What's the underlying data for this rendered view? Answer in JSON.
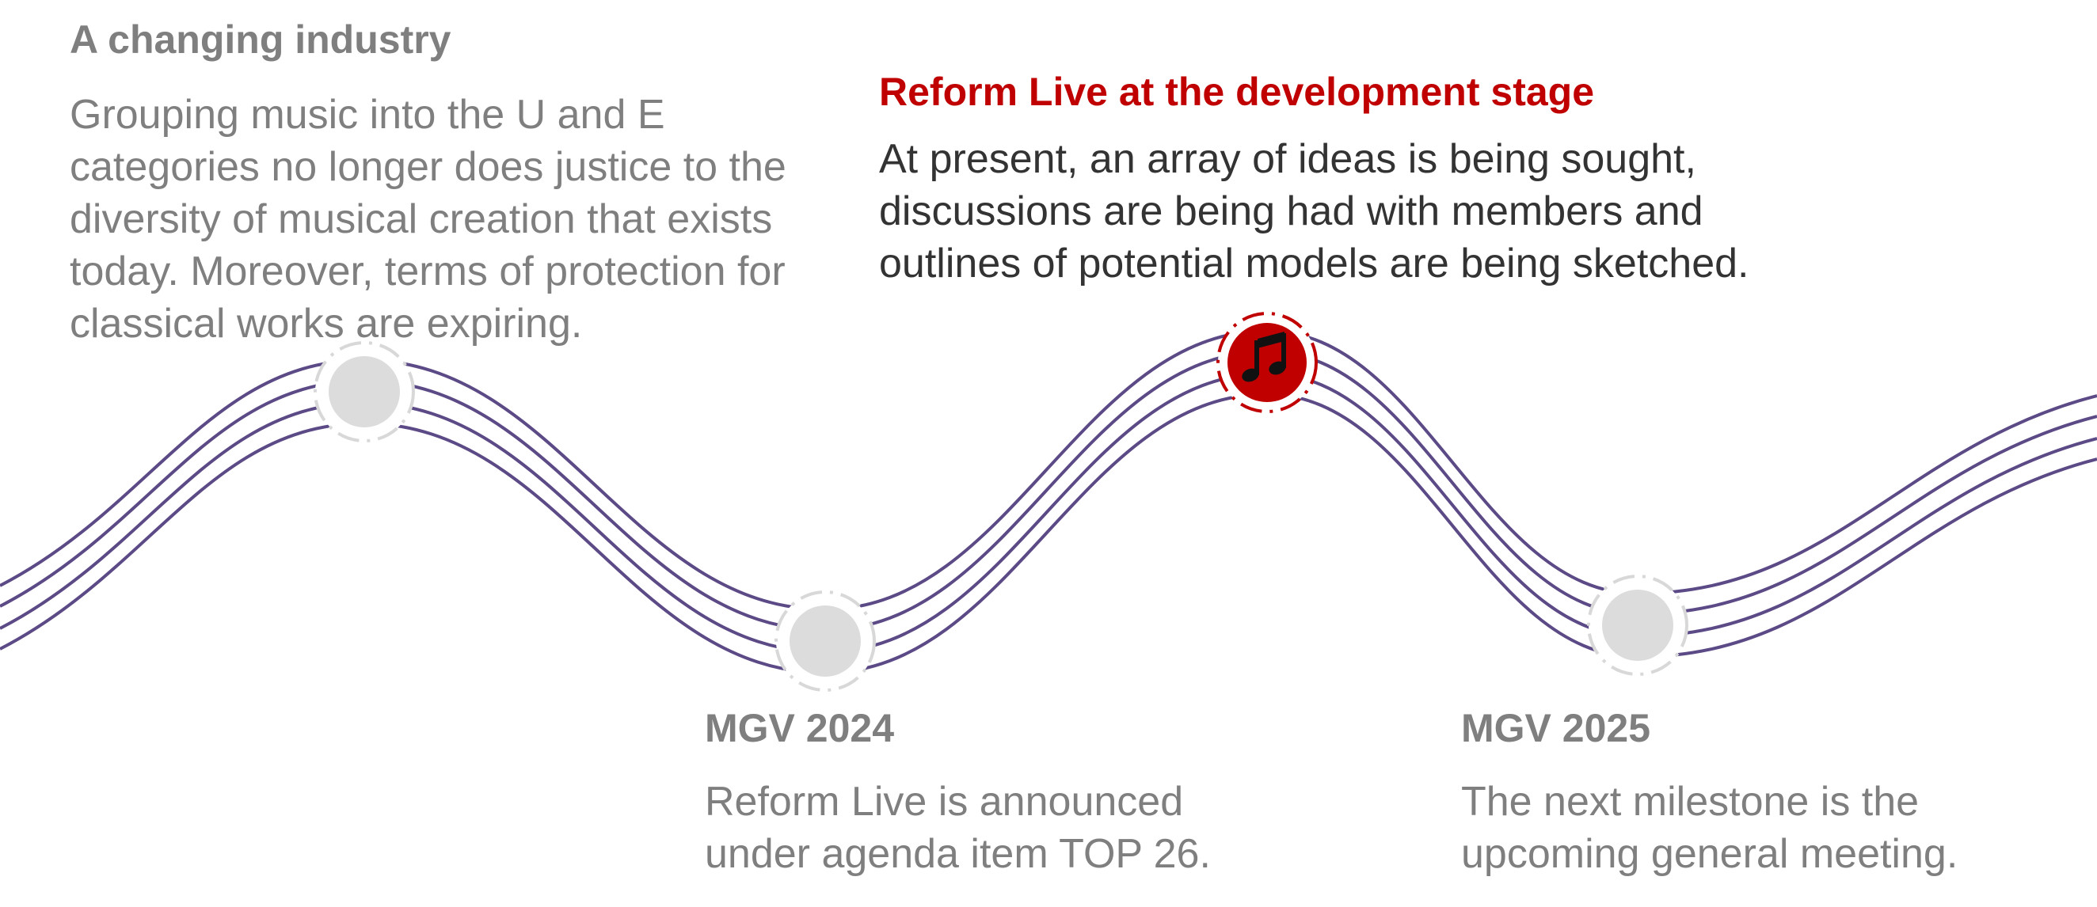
{
  "colors": {
    "wave": "#5b4a86",
    "node_fill_inactive": "#dcdcdc",
    "node_ring_inactive": "#d8d8d8",
    "node_fill_active": "#c00000",
    "text_muted": "#7f7f7f",
    "text_active_title": "#c00000",
    "text_active_body": "#333333"
  },
  "timeline": {
    "stages": [
      {
        "id": "changing-industry",
        "title": "A changing industry",
        "body": "Grouping music into the U and E\ncategories no longer does justice to the\ndiversity of musical creation that exists\ntoday. Moreover, terms of protection for\nclassical works are expiring.",
        "state": "inactive"
      },
      {
        "id": "mgv-2024",
        "title": "MGV 2024",
        "body": "Reform Live is announced\nunder agenda item TOP 26.",
        "state": "inactive"
      },
      {
        "id": "development-stage",
        "title": "Reform Live at the development stage",
        "body": "At present, an array of ideas is being sought,\ndiscussions are being had with members and\noutlines of potential models are being sketched.",
        "state": "active",
        "icon": "music-note-icon"
      },
      {
        "id": "mgv-2025",
        "title": "MGV 2025",
        "body": "The next milestone is the\nupcoming general meeting.",
        "state": "inactive"
      }
    ]
  }
}
